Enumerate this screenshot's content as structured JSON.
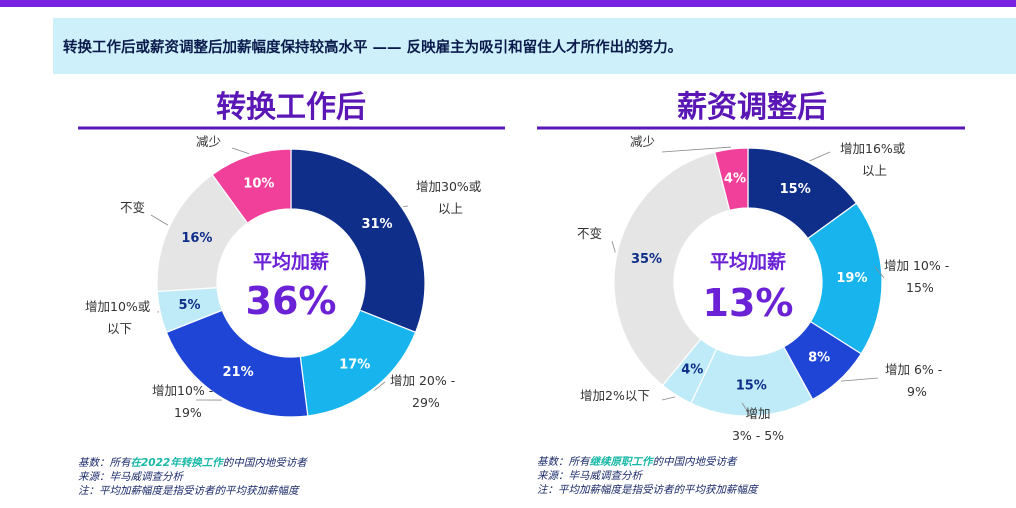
{
  "banner": "转换工作后或薪资调整后加薪幅度保持较高水平 —— 反映雇主为吸引和留住人才所作出的努力。",
  "chart_data": [
    {
      "type": "pie",
      "variant": "donut",
      "title": "转换工作后",
      "center_label": "平均加薪",
      "center_value": "36%",
      "slices": [
        {
          "label": [
            "增加30%或",
            "以上"
          ],
          "value": 31,
          "text": "31%",
          "color": "#0f2e8a",
          "text_color": "#ffffff"
        },
        {
          "label": [
            "增加 20% -",
            "29%"
          ],
          "value": 17,
          "text": "17%",
          "color": "#17b4ee",
          "text_color": "#ffffff"
        },
        {
          "label": [
            "增加10% -",
            "19%"
          ],
          "value": 21,
          "text": "21%",
          "color": "#1f45d6",
          "text_color": "#ffffff"
        },
        {
          "label": [
            "增加10%或",
            "以下"
          ],
          "value": 5,
          "text": "5%",
          "color": "#bfeaf8",
          "text_color": "#0f2e8a"
        },
        {
          "label": [
            "不变"
          ],
          "value": 16,
          "text": "16%",
          "color": "#e5e5e5",
          "text_color": "#0f2e8a"
        },
        {
          "label": [
            "减少"
          ],
          "value": 10,
          "text": "10%",
          "color": "#f0409a",
          "text_color": "#ffffff"
        }
      ],
      "notes": {
        "line1_prefix": "基数：所有",
        "line1_highlight": "在2022年转换工作",
        "line1_suffix": "的中国内地受访者",
        "line2": "来源：毕马威调查分析",
        "line3": "注：平均加薪幅度是指受访者的平均获加薪幅度"
      }
    },
    {
      "type": "pie",
      "variant": "donut",
      "title": "薪资调整后",
      "center_label": "平均加薪",
      "center_value": "13%",
      "slices": [
        {
          "label": [
            "增加16%或",
            "以上"
          ],
          "value": 15,
          "text": "15%",
          "color": "#0f2e8a",
          "text_color": "#ffffff"
        },
        {
          "label": [
            "增加 10% -",
            "15%"
          ],
          "value": 19,
          "text": "19%",
          "color": "#17b4ee",
          "text_color": "#ffffff"
        },
        {
          "label": [
            "增加 6% -",
            "9%"
          ],
          "value": 8,
          "text": "8%",
          "color": "#1f45d6",
          "text_color": "#ffffff"
        },
        {
          "label": [
            "增加",
            "3% - 5%"
          ],
          "value": 15,
          "text": "15%",
          "color": "#bfeaf8",
          "text_color": "#0f2e8a"
        },
        {
          "label": [
            "增加2%以下"
          ],
          "value": 4,
          "text": "4%",
          "color": "#bfeaf8",
          "text_color": "#0f2e8a"
        },
        {
          "label": [
            "不变"
          ],
          "value": 35,
          "text": "35%",
          "color": "#e5e5e5",
          "text_color": "#0f2e8a"
        },
        {
          "label": [
            "减少"
          ],
          "value": 4,
          "text": "4%",
          "color": "#f0409a",
          "text_color": "#ffffff"
        }
      ],
      "notes": {
        "line1_prefix": "基数：所有",
        "line1_highlight": "继续原职工作",
        "line1_suffix": "的中国内地受访者",
        "line2": "来源：毕马威调查分析",
        "line3": "注：平均加薪幅度是指受访者的平均获加薪幅度"
      }
    }
  ]
}
